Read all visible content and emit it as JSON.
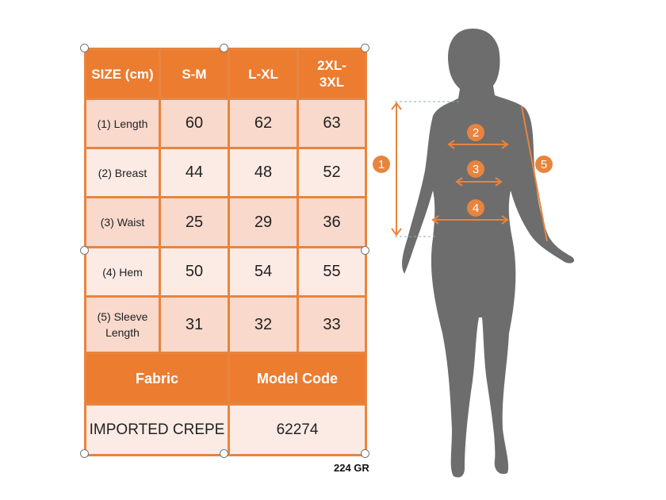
{
  "table": {
    "header": [
      "SIZE (cm)",
      "S-M",
      "L-XL",
      "2XL-3XL"
    ],
    "rows": [
      {
        "label": "(1) Length",
        "values": [
          "60",
          "62",
          "63"
        ]
      },
      {
        "label": "(2) Breast",
        "values": [
          "44",
          "48",
          "52"
        ]
      },
      {
        "label": "(3) Waist",
        "values": [
          "25",
          "29",
          "36"
        ]
      },
      {
        "label": "(4) Hem",
        "values": [
          "50",
          "54",
          "55"
        ]
      },
      {
        "label": "(5) Sleeve Length",
        "values": [
          "31",
          "32",
          "33"
        ]
      }
    ],
    "fabric_label": "Fabric",
    "model_code_label": "Model Code",
    "fabric_value": "IMPORTED CREPE",
    "model_code_value": "62274"
  },
  "weight": "224 GR",
  "figure": {
    "markers": [
      "1",
      "2",
      "3",
      "4",
      "5"
    ],
    "silhouette_color": "#6d6d6d",
    "accent": "#e8843e"
  }
}
